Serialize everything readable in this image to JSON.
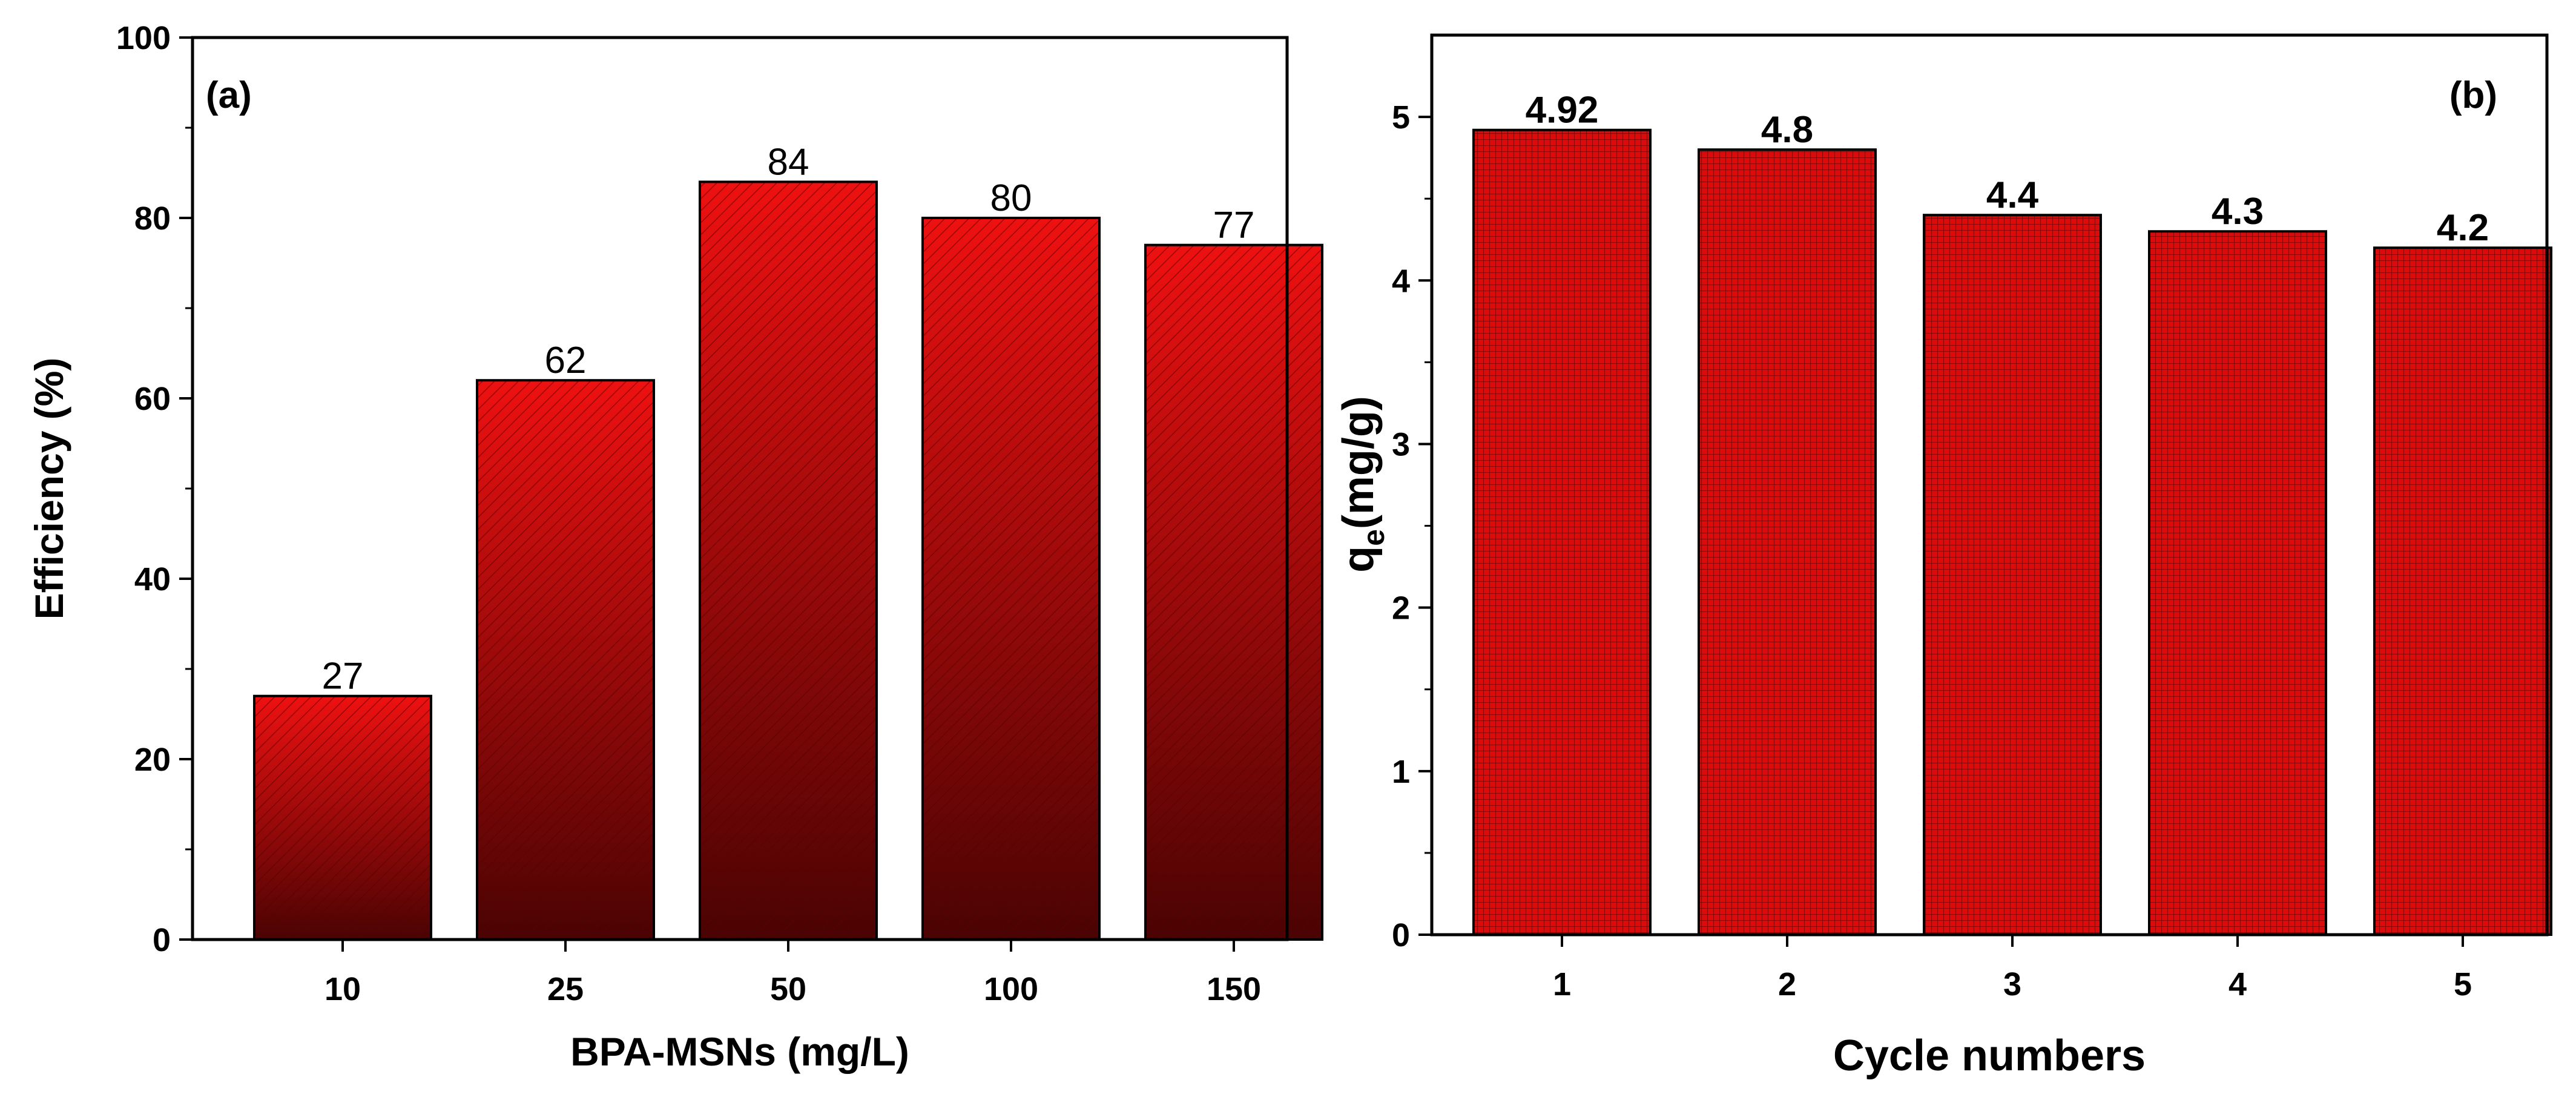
{
  "chart_data": [
    {
      "type": "bar",
      "panel_label": "(a)",
      "categories": [
        "10",
        "25",
        "50",
        "100",
        "150"
      ],
      "values": [
        27,
        62,
        84,
        80,
        77
      ],
      "value_labels": [
        "27",
        "62",
        "84",
        "80",
        "77"
      ],
      "title": "",
      "xlabel": "BPA-MSNs (mg/L)",
      "ylabel": "Efficiency (%)",
      "ylim": [
        0,
        100
      ],
      "yticks": [
        0,
        20,
        40,
        60,
        80,
        100
      ],
      "ytick_labels": [
        "0",
        "20",
        "40",
        "60",
        "80",
        "100"
      ],
      "grid": false,
      "bar_fill": "gradient with diagonal hatch",
      "colors": {
        "bar_top": "#ee1111",
        "bar_bottom": "#4a0303",
        "hatch": "#5a0000",
        "outline": "#000000"
      }
    },
    {
      "type": "bar",
      "panel_label": "(b)",
      "categories": [
        "1",
        "2",
        "3",
        "4",
        "5"
      ],
      "values": [
        4.92,
        4.8,
        4.4,
        4.3,
        4.2
      ],
      "value_labels": [
        "4.92",
        "4.8",
        "4.4",
        "4.3",
        "4.2"
      ],
      "title": "",
      "xlabel": "Cycle numbers",
      "ylabel_main": "q",
      "ylabel_sub": "e",
      "ylabel_rest": "(mg/g)",
      "ylim": [
        0,
        5.5
      ],
      "yticks": [
        0,
        1,
        2,
        3,
        4,
        5
      ],
      "ytick_labels": [
        "0",
        "1",
        "2",
        "3",
        "4",
        "5"
      ],
      "grid": false,
      "bar_fill": "grid pattern",
      "colors": {
        "bar": "#dd0a0a",
        "grid_line": "#7a0000",
        "outline": "#000000"
      }
    }
  ]
}
